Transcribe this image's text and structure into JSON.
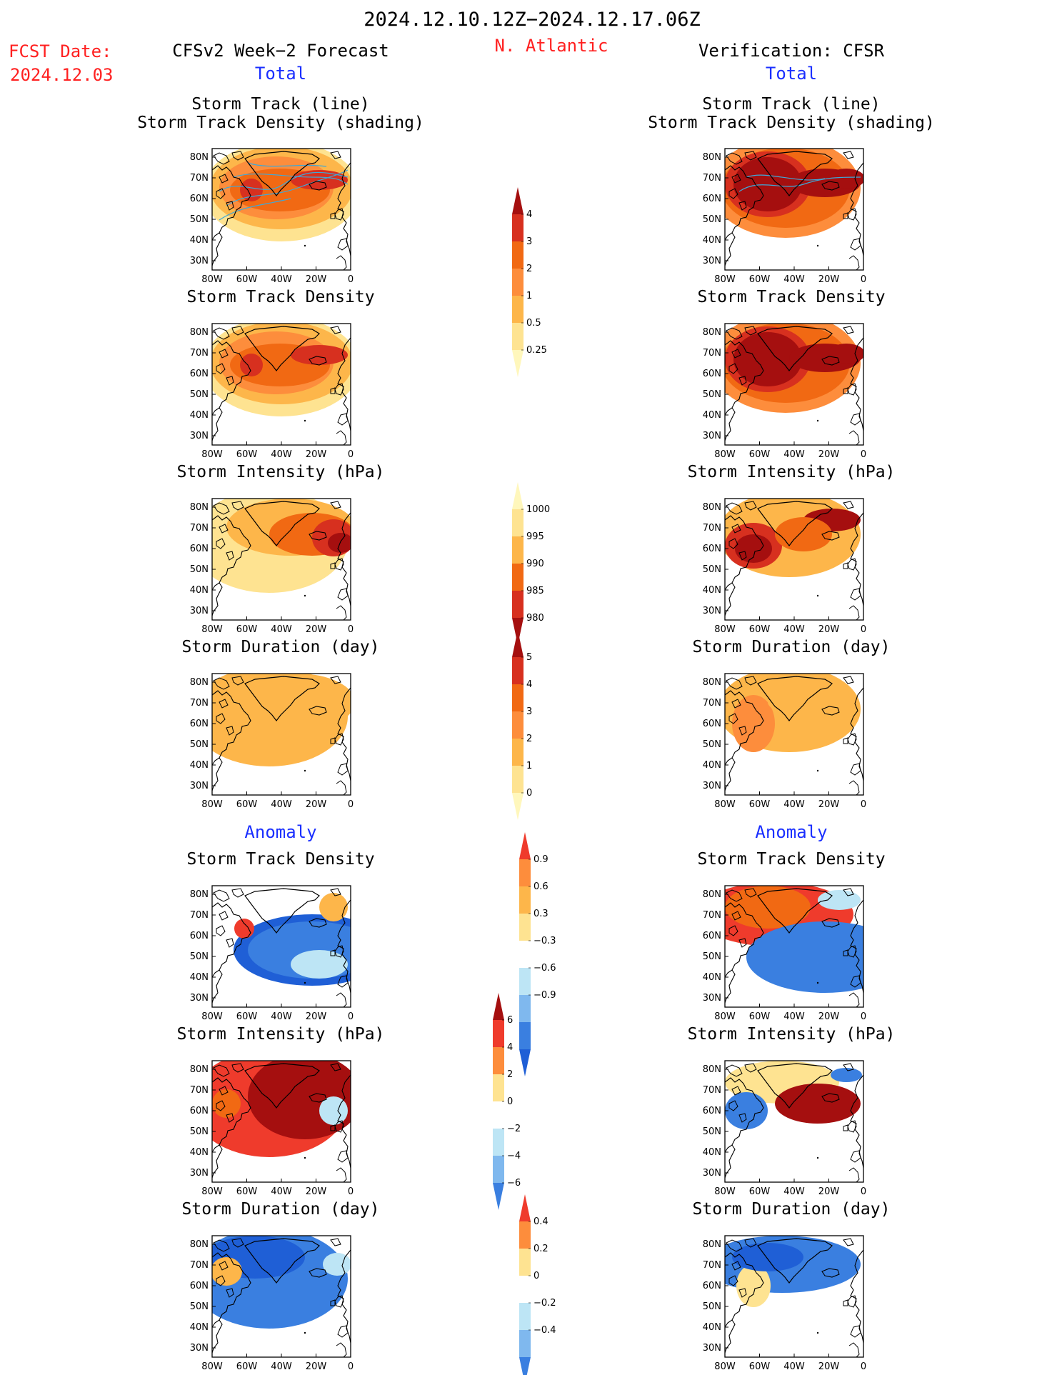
{
  "header": {
    "period": "2024.12.10.12Z−2024.12.17.06Z",
    "fcst_label": "FCST Date:",
    "fcst_date": "2024.12.03",
    "left_title": "CFSv2 Week−2 Forecast",
    "region": "N. Atlantic",
    "right_title": "Verification: CFSR",
    "total_left": "Total",
    "total_right": "Total",
    "anomaly_left": "Anomaly",
    "anomaly_right": "Anomaly"
  },
  "axes": {
    "lat_ticks": [
      "80N",
      "70N",
      "60N",
      "50N",
      "40N",
      "30N"
    ],
    "lon_ticks": [
      "80W",
      "60W",
      "40W",
      "20W",
      "0"
    ]
  },
  "panels": {
    "total_track": {
      "title_line1": "Storm Track (line)",
      "title_line2": "Storm Track Density (shading)"
    },
    "total_density": {
      "title": "Storm Track Density"
    },
    "total_intensity": {
      "title": "Storm Intensity (hPa)"
    },
    "total_duration": {
      "title": "Storm Duration (day)"
    },
    "anom_density": {
      "title": "Storm Track Density"
    },
    "anom_intensity": {
      "title": "Storm Intensity (hPa)"
    },
    "anom_duration": {
      "title": "Storm Duration (day)"
    }
  },
  "colorbars": {
    "density": {
      "labels": [
        "4",
        "3",
        "2",
        "1",
        "0.5",
        "0.25"
      ],
      "colors": [
        "#a50f0f",
        "#d7301f",
        "#f16913",
        "#fd8d3c",
        "#fdb64a",
        "#fee391",
        "#fff7bc"
      ]
    },
    "intensity": {
      "labels": [
        "1000",
        "995",
        "990",
        "985",
        "980"
      ],
      "colors": [
        "#fff7bc",
        "#fee391",
        "#fdb64a",
        "#f16913",
        "#d7301f",
        "#a50f0f"
      ]
    },
    "duration": {
      "labels": [
        "5",
        "4",
        "3",
        "2",
        "1",
        "0"
      ],
      "colors": [
        "#a50f0f",
        "#d7301f",
        "#f16913",
        "#fd8d3c",
        "#fdb64a",
        "#fee391",
        "#fff7bc"
      ]
    },
    "anom_density": {
      "labels": [
        "0.9",
        "0.6",
        "0.3",
        "−0.3",
        "−0.6",
        "−0.9"
      ],
      "colors": [
        "#ef3b2c",
        "#fd8d3c",
        "#fdb64a",
        "#fee391",
        "#ffffff",
        "#bde5f5",
        "#7fb8ee",
        "#3a7fe0",
        "#1f5fd6"
      ]
    },
    "anom_intensity": {
      "labels": [
        "6",
        "4",
        "2",
        "0",
        "−2",
        "−4",
        "−6"
      ],
      "colors": [
        "#a50f0f",
        "#ef3b2c",
        "#fd8d3c",
        "#fee391",
        "#ffffff",
        "#bde5f5",
        "#7fb8ee",
        "#3a7fe0"
      ]
    },
    "anom_duration": {
      "labels": [
        "0.4",
        "0.2",
        "0",
        "−0.2",
        "−0.4"
      ],
      "colors": [
        "#ef3b2c",
        "#fd8d3c",
        "#fee391",
        "#ffffff",
        "#bde5f5",
        "#7fb8ee",
        "#3a7fe0"
      ]
    }
  }
}
